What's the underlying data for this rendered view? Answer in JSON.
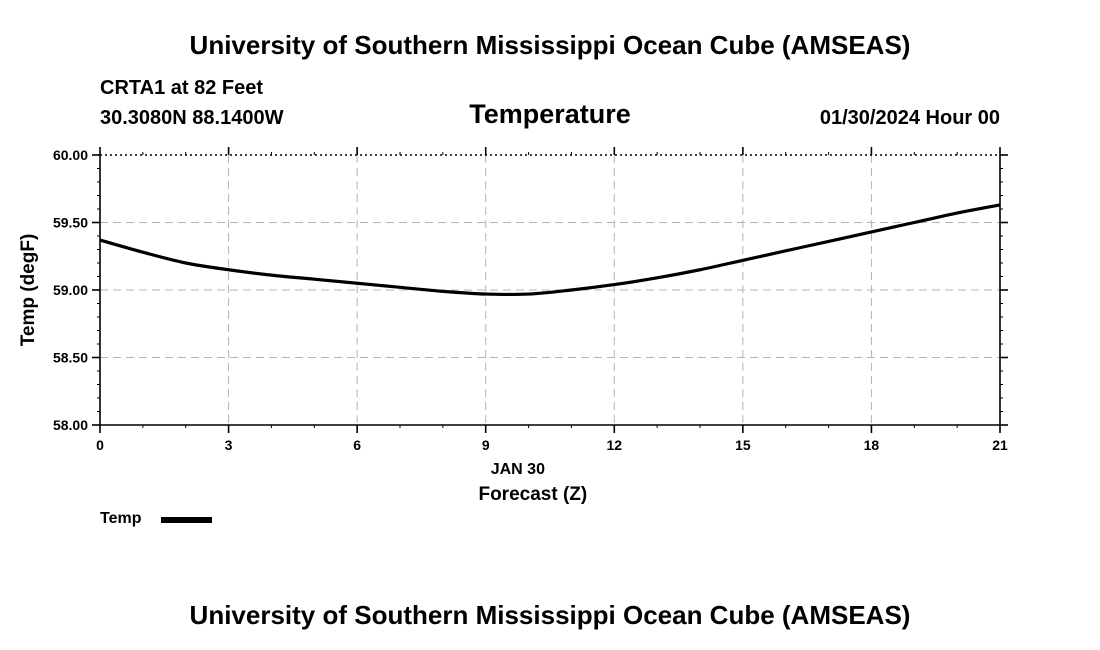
{
  "header": {
    "title_top": "University of Southern Mississippi Ocean Cube (AMSEAS)",
    "station": "CRTA1 at 82 Feet",
    "coords": "30.3080N  88.1400W",
    "subtitle": "Temperature",
    "datetime": "01/30/2024 Hour 00"
  },
  "footer": {
    "title_bottom": "University of Southern Mississippi Ocean Cube (AMSEAS)"
  },
  "legend": {
    "label": "Temp",
    "color": "#000000"
  },
  "chart_data": {
    "type": "line",
    "title": "Temperature",
    "xlabel": "Forecast (Z)",
    "xlabel_date": "JAN 30",
    "ylabel": "Temp (degF)",
    "xlim": [
      0,
      21
    ],
    "ylim": [
      58.0,
      60.0
    ],
    "xticks": [
      0,
      3,
      6,
      9,
      12,
      15,
      18,
      21
    ],
    "xtick_labels": [
      "0",
      "3",
      "6",
      "9",
      "12",
      "15",
      "18",
      "21"
    ],
    "yticks": [
      58.0,
      58.5,
      59.0,
      59.5,
      60.0
    ],
    "ytick_labels": [
      "58.00",
      "58.50",
      "59.00",
      "59.50",
      "60.00"
    ],
    "grid": true,
    "series": [
      {
        "name": "Temp",
        "color": "#000000",
        "x": [
          0,
          1,
          2,
          3,
          4,
          5,
          6,
          7,
          8,
          9,
          10,
          11,
          12,
          13,
          14,
          15,
          16,
          17,
          18,
          19,
          20,
          21
        ],
        "values": [
          59.37,
          59.28,
          59.2,
          59.15,
          59.11,
          59.08,
          59.05,
          59.02,
          58.99,
          58.97,
          58.97,
          59.0,
          59.04,
          59.09,
          59.15,
          59.22,
          59.29,
          59.36,
          59.43,
          59.5,
          59.57,
          59.63
        ]
      }
    ]
  }
}
